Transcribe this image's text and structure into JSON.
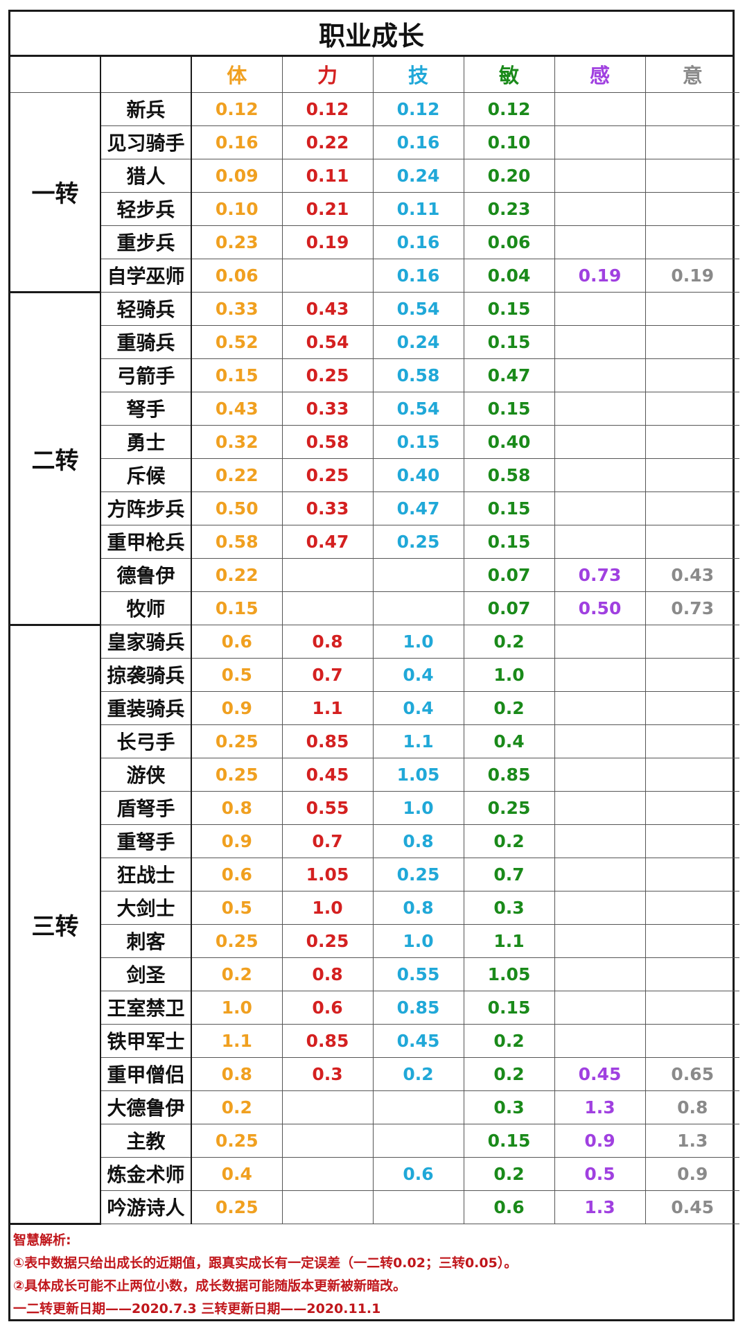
{
  "title": "职业成长",
  "columns": [
    {
      "label": "体",
      "color": "#f0a020"
    },
    {
      "label": "力",
      "color": "#d42020"
    },
    {
      "label": "技",
      "color": "#20a8d8"
    },
    {
      "label": "敏",
      "color": "#1a8a1a"
    },
    {
      "label": "感",
      "color": "#a040e0"
    },
    {
      "label": "意",
      "color": "#8a8a8a"
    }
  ],
  "groups": [
    {
      "stage": "一转",
      "rows": [
        {
          "name": "新兵",
          "values": [
            "0.12",
            "0.12",
            "0.12",
            "0.12",
            "",
            ""
          ]
        },
        {
          "name": "见习骑手",
          "values": [
            "0.16",
            "0.22",
            "0.16",
            "0.10",
            "",
            ""
          ]
        },
        {
          "name": "猎人",
          "values": [
            "0.09",
            "0.11",
            "0.24",
            "0.20",
            "",
            ""
          ]
        },
        {
          "name": "轻步兵",
          "values": [
            "0.10",
            "0.21",
            "0.11",
            "0.23",
            "",
            ""
          ]
        },
        {
          "name": "重步兵",
          "values": [
            "0.23",
            "0.19",
            "0.16",
            "0.06",
            "",
            ""
          ]
        },
        {
          "name": "自学巫师",
          "values": [
            "0.06",
            "",
            "0.16",
            "0.04",
            "0.19",
            "0.19"
          ]
        }
      ]
    },
    {
      "stage": "二转",
      "rows": [
        {
          "name": "轻骑兵",
          "values": [
            "0.33",
            "0.43",
            "0.54",
            "0.15",
            "",
            ""
          ]
        },
        {
          "name": "重骑兵",
          "values": [
            "0.52",
            "0.54",
            "0.24",
            "0.15",
            "",
            ""
          ]
        },
        {
          "name": "弓箭手",
          "values": [
            "0.15",
            "0.25",
            "0.58",
            "0.47",
            "",
            ""
          ]
        },
        {
          "name": "弩手",
          "values": [
            "0.43",
            "0.33",
            "0.54",
            "0.15",
            "",
            ""
          ]
        },
        {
          "name": "勇士",
          "values": [
            "0.32",
            "0.58",
            "0.15",
            "0.40",
            "",
            ""
          ]
        },
        {
          "name": "斥候",
          "values": [
            "0.22",
            "0.25",
            "0.40",
            "0.58",
            "",
            ""
          ]
        },
        {
          "name": "方阵步兵",
          "values": [
            "0.50",
            "0.33",
            "0.47",
            "0.15",
            "",
            ""
          ]
        },
        {
          "name": "重甲枪兵",
          "values": [
            "0.58",
            "0.47",
            "0.25",
            "0.15",
            "",
            ""
          ]
        },
        {
          "name": "德鲁伊",
          "values": [
            "0.22",
            "",
            "",
            "0.07",
            "0.73",
            "0.43"
          ]
        },
        {
          "name": "牧师",
          "values": [
            "0.15",
            "",
            "",
            "0.07",
            "0.50",
            "0.73"
          ]
        }
      ]
    },
    {
      "stage": "三转",
      "rows": [
        {
          "name": "皇家骑兵",
          "values": [
            "0.6",
            "0.8",
            "1.0",
            "0.2",
            "",
            ""
          ]
        },
        {
          "name": "掠袭骑兵",
          "values": [
            "0.5",
            "0.7",
            "0.4",
            "1.0",
            "",
            ""
          ]
        },
        {
          "name": "重装骑兵",
          "values": [
            "0.9",
            "1.1",
            "0.4",
            "0.2",
            "",
            ""
          ]
        },
        {
          "name": "长弓手",
          "values": [
            "0.25",
            "0.85",
            "1.1",
            "0.4",
            "",
            ""
          ]
        },
        {
          "name": "游侠",
          "values": [
            "0.25",
            "0.45",
            "1.05",
            "0.85",
            "",
            ""
          ]
        },
        {
          "name": "盾弩手",
          "values": [
            "0.8",
            "0.55",
            "1.0",
            "0.25",
            "",
            ""
          ]
        },
        {
          "name": "重弩手",
          "values": [
            "0.9",
            "0.7",
            "0.8",
            "0.2",
            "",
            ""
          ]
        },
        {
          "name": "狂战士",
          "values": [
            "0.6",
            "1.05",
            "0.25",
            "0.7",
            "",
            ""
          ]
        },
        {
          "name": "大剑士",
          "values": [
            "0.5",
            "1.0",
            "0.8",
            "0.3",
            "",
            ""
          ]
        },
        {
          "name": "刺客",
          "values": [
            "0.25",
            "0.25",
            "1.0",
            "1.1",
            "",
            ""
          ]
        },
        {
          "name": "剑圣",
          "values": [
            "0.2",
            "0.8",
            "0.55",
            "1.05",
            "",
            ""
          ]
        },
        {
          "name": "王室禁卫",
          "values": [
            "1.0",
            "0.6",
            "0.85",
            "0.15",
            "",
            ""
          ]
        },
        {
          "name": "铁甲军士",
          "values": [
            "1.1",
            "0.85",
            "0.45",
            "0.2",
            "",
            ""
          ]
        },
        {
          "name": "重甲僧侣",
          "values": [
            "0.8",
            "0.3",
            "0.2",
            "0.2",
            "0.45",
            "0.65"
          ]
        },
        {
          "name": "大德鲁伊",
          "values": [
            "0.2",
            "",
            "",
            "0.3",
            "1.3",
            "0.8"
          ]
        },
        {
          "name": "主教",
          "values": [
            "0.25",
            "",
            "",
            "0.15",
            "0.9",
            "1.3"
          ]
        },
        {
          "name": "炼金术师",
          "values": [
            "0.4",
            "",
            "0.6",
            "0.2",
            "0.5",
            "0.9"
          ]
        },
        {
          "name": "吟游诗人",
          "values": [
            "0.25",
            "",
            "",
            "0.6",
            "1.3",
            "0.45"
          ]
        }
      ]
    }
  ],
  "notes": {
    "heading": "智慧解析:",
    "line1": "①表中数据只给出成长的近期值，跟真实成长有一定误差（一二转0.02；三转0.05）。",
    "line2": "②具体成长可能不止两位小数，成长数据可能随版本更新被新暗改。",
    "line3": "一二转更新日期——2020.7.3 三转更新日期——2020.11.1"
  }
}
